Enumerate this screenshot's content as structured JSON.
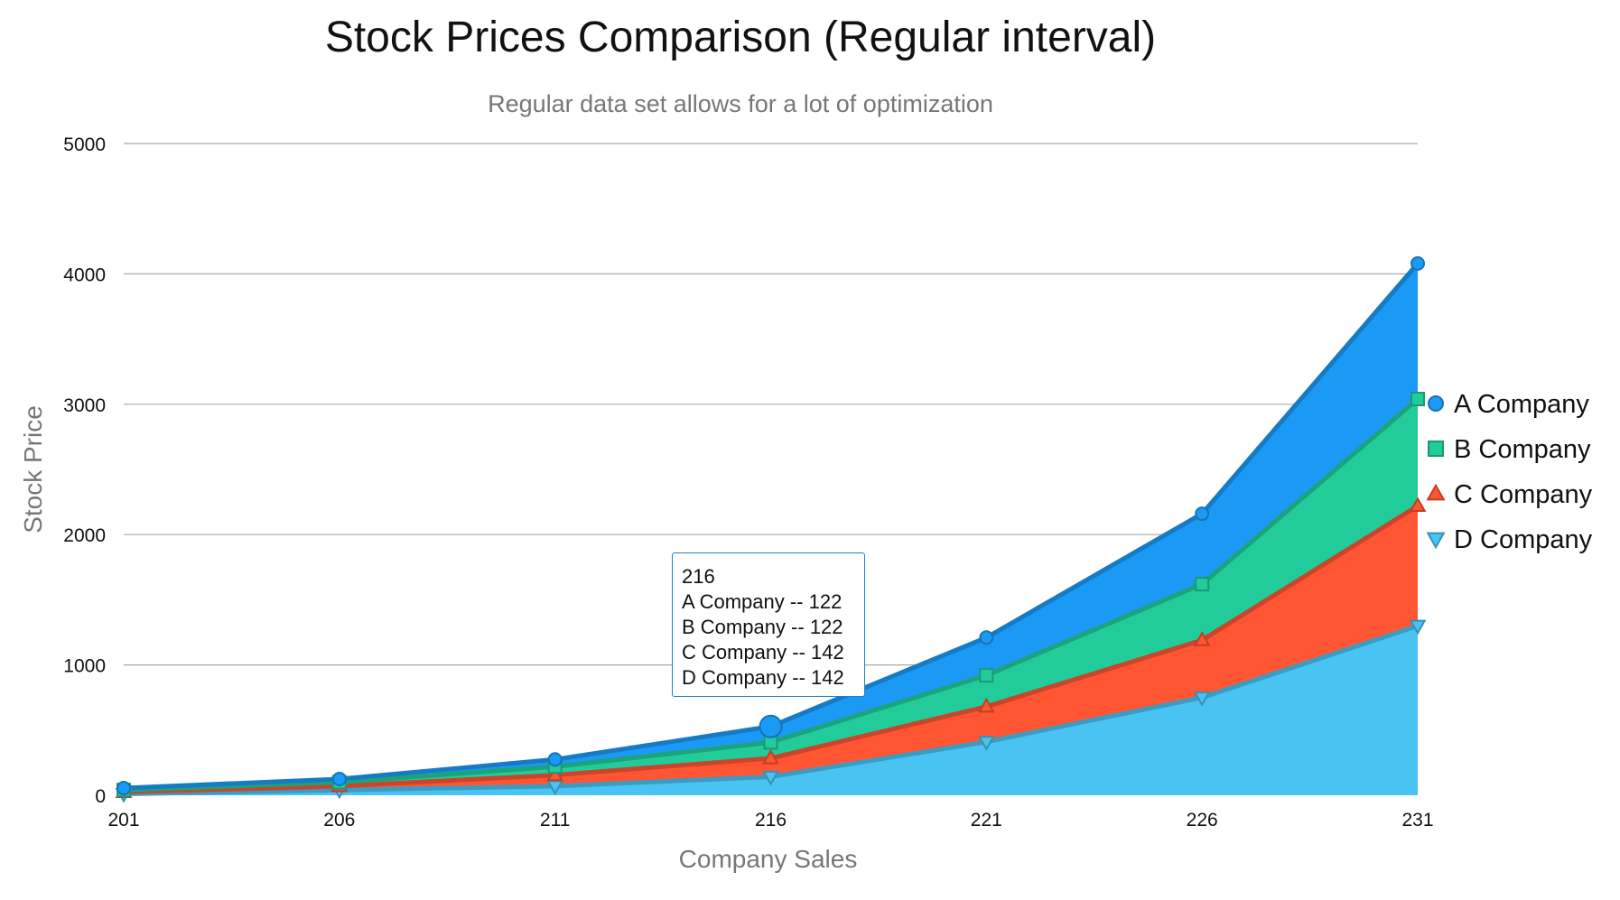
{
  "chart_data": {
    "type": "area",
    "title": "Stock Prices Comparison (Regular interval)",
    "subtitle": "Regular data set allows for a lot of optimization",
    "xlabel": "Company Sales",
    "ylabel": "Stock Price",
    "x": [
      201,
      206,
      211,
      216,
      221,
      226,
      231
    ],
    "ylim": [
      0,
      5000
    ],
    "yticks": [
      0,
      1000,
      2000,
      3000,
      4000,
      5000
    ],
    "stacked": true,
    "grid": true,
    "legend_position": "right",
    "series": [
      {
        "name": "A Company",
        "marker": "circle",
        "color": "#1a9af5",
        "values": [
          15,
          25,
          55,
          122,
          290,
          540,
          1040
        ]
      },
      {
        "name": "B Company",
        "marker": "square",
        "color": "#22cc9a",
        "values": [
          15,
          30,
          65,
          122,
          240,
          430,
          820
        ]
      },
      {
        "name": "C Company",
        "marker": "triangle-up",
        "color": "#ff5533",
        "values": [
          15,
          30,
          85,
          142,
          270,
          440,
          920
        ]
      },
      {
        "name": "D Company",
        "marker": "triangle-down",
        "color": "#48c3f2",
        "values": [
          10,
          40,
          70,
          142,
          410,
          750,
          1300
        ]
      }
    ],
    "tooltip": {
      "x": "216",
      "lines": [
        "A Company -- 122",
        "B Company -- 122",
        "C Company -- 142",
        "D Company -- 142"
      ]
    }
  }
}
